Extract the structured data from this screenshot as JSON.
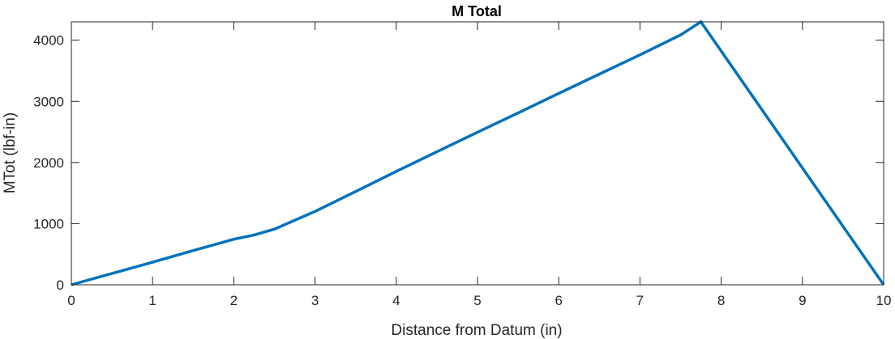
{
  "chart_data": {
    "type": "line",
    "title": "M Total",
    "xlabel": "Distance from Datum (in)",
    "ylabel": "MTot (lbf-in)",
    "xlim": [
      0,
      10
    ],
    "ylim": [
      0,
      4300
    ],
    "xticks": [
      0,
      1,
      2,
      3,
      4,
      5,
      6,
      7,
      8,
      9,
      10
    ],
    "yticks": [
      0,
      1000,
      2000,
      3000,
      4000
    ],
    "xtick_labels": [
      "0",
      "1",
      "2",
      "3",
      "4",
      "5",
      "6",
      "7",
      "8",
      "9",
      "10"
    ],
    "ytick_labels": [
      "0",
      "1000",
      "2000",
      "3000",
      "4000"
    ],
    "grid": false,
    "box": true,
    "colors": {
      "line": "#0072BD",
      "axes": "#262626",
      "title": "#000000"
    },
    "series": [
      {
        "x": [
          0,
          0.5,
          1,
          1.5,
          2,
          2.25,
          2.5,
          3,
          3.5,
          4,
          4.5,
          5,
          5.5,
          6,
          6.5,
          7,
          7.5,
          7.75,
          10
        ],
        "y": [
          0,
          185,
          370,
          560,
          745,
          815,
          910,
          1200,
          1525,
          1855,
          2175,
          2495,
          2810,
          3130,
          3445,
          3760,
          4085,
          4300,
          0
        ]
      }
    ]
  }
}
